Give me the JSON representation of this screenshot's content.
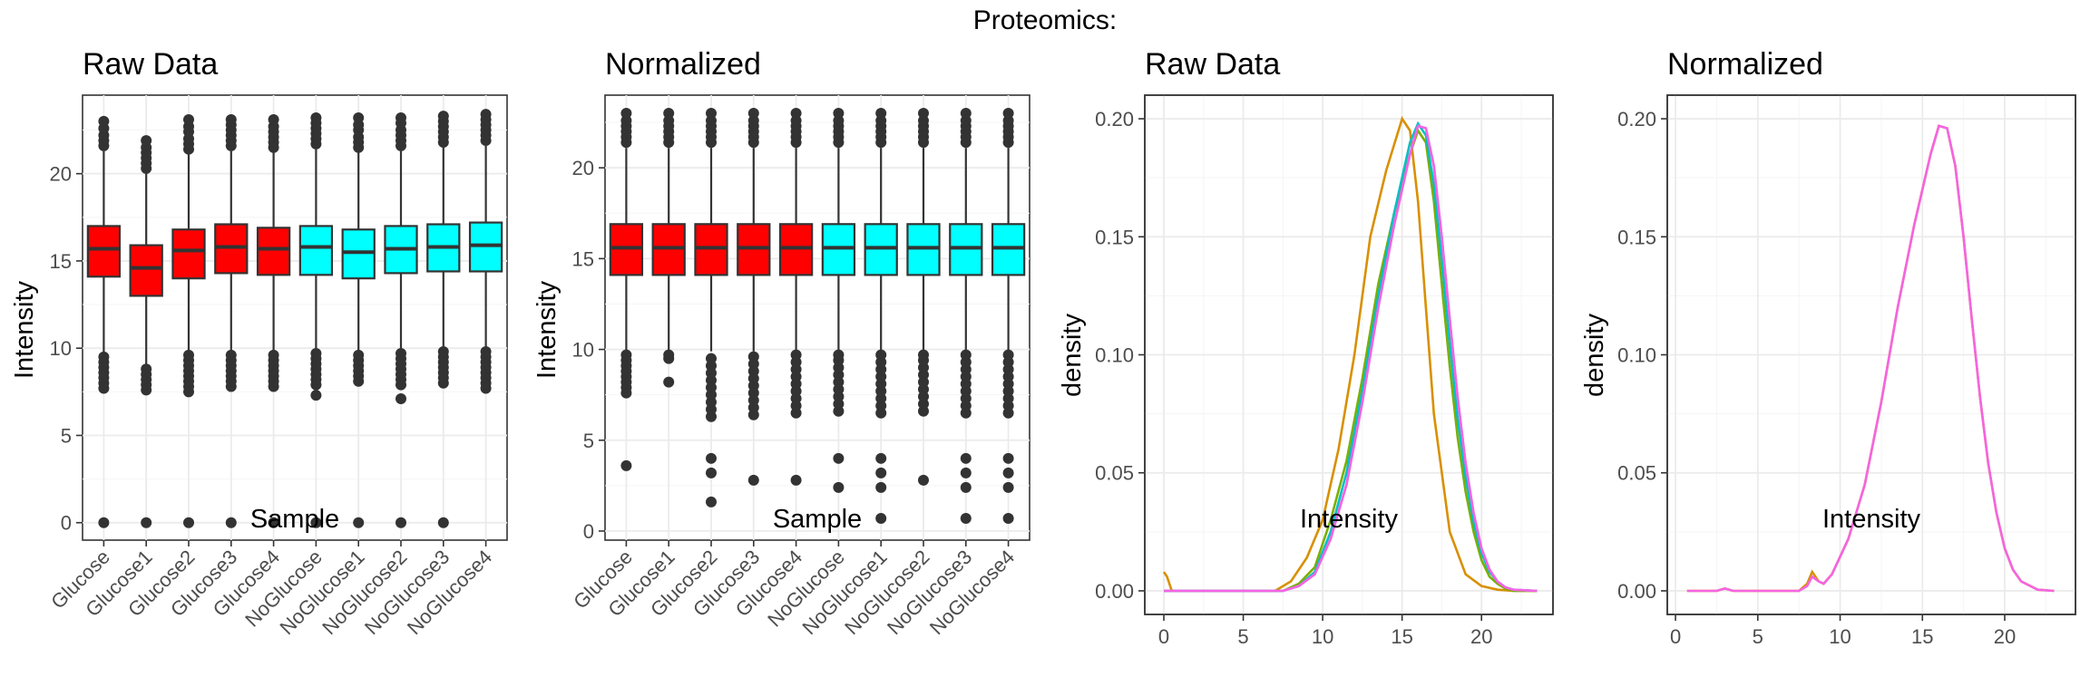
{
  "suptitle": "Proteomics:",
  "colors": {
    "Glucose": "#ff0000",
    "NoGlucose": "#00ffff"
  },
  "chart_data": [
    {
      "type": "box",
      "title": "Raw Data",
      "xlabel": "Sample",
      "ylabel": "Intensity",
      "ylim": [
        -1,
        24.5
      ],
      "yticks": [
        0,
        5,
        10,
        15,
        20
      ],
      "categories": [
        "Glucose",
        "Glucose1",
        "Glucose2",
        "Glucose3",
        "Glucose4",
        "NoGlucose",
        "NoGlucose1",
        "NoGlucose2",
        "NoGlucose3",
        "NoGlucose4"
      ],
      "groups": [
        "Glucose",
        "Glucose",
        "Glucose",
        "Glucose",
        "Glucose",
        "NoGlucose",
        "NoGlucose",
        "NoGlucose",
        "NoGlucose",
        "NoGlucose"
      ],
      "boxes": [
        {
          "q1": 14.1,
          "median": 15.7,
          "q3": 17.0,
          "lower": 9.8,
          "upper": 21.3,
          "outliers": [
            0,
            7.7,
            8.0,
            8.3,
            8.6,
            8.9,
            9.2,
            9.5,
            21.6,
            21.9,
            22.2,
            22.6,
            23.0
          ]
        },
        {
          "q1": 13.0,
          "median": 14.6,
          "q3": 15.9,
          "lower": 8.9,
          "upper": 20.1,
          "outliers": [
            0,
            7.6,
            7.9,
            8.2,
            8.5,
            8.8,
            20.3,
            20.6,
            20.9,
            21.2,
            21.5,
            21.9
          ]
        },
        {
          "q1": 14.0,
          "median": 15.6,
          "q3": 16.8,
          "lower": 9.8,
          "upper": 21.1,
          "outliers": [
            0,
            7.5,
            7.8,
            8.1,
            8.4,
            8.7,
            9.0,
            9.3,
            9.6,
            21.4,
            21.7,
            22.0,
            22.4,
            22.7,
            23.1
          ]
        },
        {
          "q1": 14.3,
          "median": 15.8,
          "q3": 17.1,
          "lower": 9.9,
          "upper": 21.3,
          "outliers": [
            0,
            7.8,
            8.1,
            8.4,
            8.7,
            9.0,
            9.3,
            9.6,
            21.6,
            21.9,
            22.2,
            22.5,
            22.8,
            23.1
          ]
        },
        {
          "q1": 14.2,
          "median": 15.7,
          "q3": 16.9,
          "lower": 9.9,
          "upper": 21.2,
          "outliers": [
            0,
            7.8,
            8.1,
            8.4,
            8.7,
            9.0,
            9.3,
            9.6,
            21.5,
            21.8,
            22.1,
            22.4,
            22.7,
            23.1
          ]
        },
        {
          "q1": 14.2,
          "median": 15.8,
          "q3": 17.0,
          "lower": 9.9,
          "upper": 21.4,
          "outliers": [
            0,
            7.3,
            7.9,
            8.2,
            8.5,
            8.8,
            9.1,
            9.4,
            9.7,
            21.7,
            22.0,
            22.3,
            22.6,
            22.9,
            23.2
          ]
        },
        {
          "q1": 14.0,
          "median": 15.5,
          "q3": 16.8,
          "lower": 9.8,
          "upper": 21.2,
          "outliers": [
            0,
            8.1,
            8.4,
            8.7,
            9.0,
            9.3,
            9.6,
            21.5,
            21.8,
            22.1,
            22.5,
            22.8,
            23.2
          ]
        },
        {
          "q1": 14.3,
          "median": 15.7,
          "q3": 17.0,
          "lower": 9.9,
          "upper": 21.3,
          "outliers": [
            0,
            7.1,
            7.9,
            8.2,
            8.5,
            8.8,
            9.1,
            9.4,
            9.7,
            21.6,
            21.9,
            22.2,
            22.5,
            22.9,
            23.2
          ]
        },
        {
          "q1": 14.4,
          "median": 15.8,
          "q3": 17.1,
          "lower": 10.0,
          "upper": 21.5,
          "outliers": [
            0,
            8.0,
            8.3,
            8.6,
            8.9,
            9.2,
            9.5,
            9.8,
            21.8,
            22.1,
            22.4,
            22.7,
            23.0,
            23.3
          ]
        },
        {
          "q1": 14.4,
          "median": 15.9,
          "q3": 17.2,
          "lower": 10.1,
          "upper": 21.6,
          "outliers": [
            7.7,
            8.0,
            8.3,
            8.6,
            8.9,
            9.2,
            9.5,
            9.8,
            21.9,
            22.2,
            22.5,
            22.8,
            23.1,
            23.4
          ]
        }
      ]
    },
    {
      "type": "box",
      "title": "Normalized",
      "xlabel": "Sample",
      "ylabel": "Intensity",
      "ylim": [
        -0.5,
        24.0
      ],
      "yticks": [
        0,
        5,
        10,
        15,
        20
      ],
      "categories": [
        "Glucose",
        "Glucose1",
        "Glucose2",
        "Glucose3",
        "Glucose4",
        "NoGlucose",
        "NoGlucose1",
        "NoGlucose2",
        "NoGlucose3",
        "NoGlucose4"
      ],
      "groups": [
        "Glucose",
        "Glucose",
        "Glucose",
        "Glucose",
        "Glucose",
        "NoGlucose",
        "NoGlucose",
        "NoGlucose",
        "NoGlucose",
        "NoGlucose"
      ],
      "boxes": [
        {
          "q1": 14.1,
          "median": 15.6,
          "q3": 16.9,
          "lower": 9.9,
          "upper": 21.1,
          "outliers": [
            3.6,
            7.6,
            7.9,
            8.2,
            8.5,
            8.8,
            9.1,
            9.4,
            9.7,
            21.4,
            21.7,
            22.0,
            22.3,
            22.6,
            23.0
          ]
        },
        {
          "q1": 14.1,
          "median": 15.6,
          "q3": 16.9,
          "lower": 9.9,
          "upper": 21.1,
          "outliers": [
            8.2,
            9.5,
            9.7,
            21.4,
            21.7,
            22.0,
            22.3,
            22.6,
            23.0
          ]
        },
        {
          "q1": 14.1,
          "median": 15.6,
          "q3": 16.9,
          "lower": 9.9,
          "upper": 21.1,
          "outliers": [
            1.6,
            3.2,
            4.0,
            6.3,
            6.7,
            7.1,
            7.5,
            7.9,
            8.3,
            8.7,
            9.1,
            9.5,
            21.4,
            21.7,
            22.0,
            22.3,
            22.6,
            23.0
          ]
        },
        {
          "q1": 14.1,
          "median": 15.6,
          "q3": 16.9,
          "lower": 9.9,
          "upper": 21.1,
          "outliers": [
            2.8,
            6.4,
            6.8,
            7.2,
            7.6,
            8.0,
            8.4,
            8.8,
            9.2,
            9.6,
            21.4,
            21.7,
            22.0,
            22.3,
            22.6,
            23.0
          ]
        },
        {
          "q1": 14.1,
          "median": 15.6,
          "q3": 16.9,
          "lower": 9.9,
          "upper": 21.1,
          "outliers": [
            2.8,
            6.5,
            6.9,
            7.3,
            7.7,
            8.1,
            8.5,
            8.9,
            9.3,
            9.7,
            21.4,
            21.7,
            22.0,
            22.3,
            22.6,
            23.0
          ]
        },
        {
          "q1": 14.1,
          "median": 15.6,
          "q3": 16.9,
          "lower": 9.9,
          "upper": 21.1,
          "outliers": [
            2.4,
            4.0,
            6.6,
            7.0,
            7.4,
            7.8,
            8.2,
            8.6,
            9.0,
            9.4,
            9.7,
            21.4,
            21.7,
            22.0,
            22.3,
            22.6,
            23.0
          ]
        },
        {
          "q1": 14.1,
          "median": 15.6,
          "q3": 16.9,
          "lower": 9.9,
          "upper": 21.1,
          "outliers": [
            0.7,
            2.4,
            3.2,
            4.0,
            6.5,
            6.9,
            7.3,
            7.7,
            8.1,
            8.5,
            8.9,
            9.3,
            9.7,
            21.4,
            21.7,
            22.0,
            22.3,
            22.6,
            23.0
          ]
        },
        {
          "q1": 14.1,
          "median": 15.6,
          "q3": 16.9,
          "lower": 9.9,
          "upper": 21.1,
          "outliers": [
            2.8,
            6.6,
            7.0,
            7.4,
            7.8,
            8.2,
            8.6,
            9.0,
            9.4,
            9.7,
            21.4,
            21.7,
            22.0,
            22.3,
            22.6,
            23.0
          ]
        },
        {
          "q1": 14.1,
          "median": 15.6,
          "q3": 16.9,
          "lower": 9.9,
          "upper": 21.1,
          "outliers": [
            0.7,
            2.4,
            3.2,
            4.0,
            6.5,
            6.9,
            7.3,
            7.7,
            8.1,
            8.5,
            8.9,
            9.3,
            9.7,
            21.4,
            21.7,
            22.0,
            22.3,
            22.6,
            23.0
          ]
        },
        {
          "q1": 14.1,
          "median": 15.6,
          "q3": 16.9,
          "lower": 9.9,
          "upper": 21.1,
          "outliers": [
            0.7,
            2.4,
            3.2,
            4.0,
            6.5,
            6.9,
            7.3,
            7.7,
            8.1,
            8.5,
            8.9,
            9.3,
            9.7,
            21.4,
            21.7,
            22.0,
            22.3,
            22.6,
            23.0
          ]
        }
      ]
    },
    {
      "type": "line",
      "title": "Raw Data",
      "xlabel": "Intensity",
      "ylabel": "density",
      "xlim": [
        -1.2,
        24.5
      ],
      "ylim": [
        -0.01,
        0.21
      ],
      "xticks": [
        0,
        5,
        10,
        15,
        20
      ],
      "yticks": [
        0.0,
        0.05,
        0.1,
        0.15,
        0.2
      ],
      "ytick_labels": [
        "0.00",
        "0.05",
        "0.10",
        "0.15",
        "0.20"
      ],
      "series": [
        {
          "color": "#d89000",
          "x": [
            0,
            0.2,
            0.5,
            1.0,
            7.0,
            8.0,
            9.0,
            10.0,
            11.0,
            12.0,
            13.0,
            14.0,
            15.0,
            15.5,
            16.0,
            16.5,
            17.0,
            18.0,
            19.0,
            20.0,
            21.0,
            22.0,
            23.5
          ],
          "y": [
            0.008,
            0.006,
            0.0,
            0.0,
            0.0,
            0.004,
            0.014,
            0.03,
            0.06,
            0.1,
            0.15,
            0.178,
            0.2,
            0.195,
            0.165,
            0.12,
            0.075,
            0.025,
            0.007,
            0.002,
            0.0005,
            0.0,
            0.0
          ]
        },
        {
          "color": "#7cae00",
          "x": [
            0,
            7.5,
            8.5,
            9.5,
            10.5,
            11.5,
            12.5,
            13.5,
            14.5,
            15.5,
            16.0,
            16.5,
            17.0,
            17.5,
            18.0,
            18.5,
            19.0,
            19.5,
            20.0,
            20.5,
            21.0,
            21.5,
            22.0,
            23.5
          ],
          "y": [
            0.0,
            0.0,
            0.003,
            0.01,
            0.03,
            0.055,
            0.09,
            0.13,
            0.16,
            0.185,
            0.195,
            0.19,
            0.165,
            0.13,
            0.095,
            0.065,
            0.042,
            0.025,
            0.013,
            0.006,
            0.003,
            0.001,
            0.0,
            0.0
          ]
        },
        {
          "color": "#00bfc4",
          "x": [
            0,
            7.5,
            8.5,
            9.5,
            10.5,
            11.5,
            12.5,
            13.5,
            14.5,
            15.5,
            16.0,
            16.5,
            17.0,
            17.5,
            18.0,
            18.5,
            19.0,
            19.5,
            20.0,
            20.5,
            21.0,
            21.5,
            22.0,
            23.5
          ],
          "y": [
            0.0,
            0.0,
            0.002,
            0.008,
            0.025,
            0.05,
            0.085,
            0.125,
            0.16,
            0.19,
            0.198,
            0.193,
            0.172,
            0.14,
            0.105,
            0.073,
            0.048,
            0.029,
            0.016,
            0.008,
            0.004,
            0.0015,
            0.0005,
            0.0
          ]
        },
        {
          "color": "#c77cff",
          "x": [
            0,
            7.5,
            8.5,
            9.5,
            10.5,
            11.5,
            12.5,
            13.5,
            14.5,
            15.5,
            16.0,
            16.5,
            17.0,
            17.5,
            18.0,
            18.5,
            19.0,
            19.5,
            20.0,
            20.5,
            21.0,
            21.5,
            22.0,
            23.5
          ],
          "y": [
            0.0,
            0.0,
            0.002,
            0.007,
            0.022,
            0.045,
            0.08,
            0.12,
            0.155,
            0.185,
            0.197,
            0.196,
            0.18,
            0.15,
            0.115,
            0.082,
            0.054,
            0.033,
            0.018,
            0.009,
            0.004,
            0.0015,
            0.0005,
            0.0
          ]
        },
        {
          "color": "#f564e3",
          "x": [
            0,
            7.5,
            8.5,
            9.5,
            10.5,
            11.5,
            12.5,
            13.5,
            14.5,
            15.5,
            16.0,
            16.5,
            17.0,
            17.5,
            18.0,
            18.5,
            19.0,
            19.5,
            20.0,
            20.5,
            21.0,
            21.5,
            22.0,
            23.5
          ],
          "y": [
            0.0,
            0.0,
            0.002,
            0.007,
            0.022,
            0.045,
            0.08,
            0.12,
            0.155,
            0.185,
            0.197,
            0.196,
            0.18,
            0.15,
            0.115,
            0.082,
            0.054,
            0.033,
            0.018,
            0.009,
            0.004,
            0.0015,
            0.0005,
            0.0
          ]
        }
      ]
    },
    {
      "type": "line",
      "title": "Normalized",
      "xlabel": "Intensity",
      "ylabel": "density",
      "xlim": [
        -0.5,
        24.3
      ],
      "ylim": [
        -0.01,
        0.21
      ],
      "xticks": [
        0,
        5,
        10,
        15,
        20
      ],
      "yticks": [
        0.0,
        0.05,
        0.1,
        0.15,
        0.2
      ],
      "ytick_labels": [
        "0.00",
        "0.05",
        "0.10",
        "0.15",
        "0.20"
      ],
      "series": [
        {
          "color": "#d89000",
          "x": [
            0.7,
            2.5,
            3.0,
            3.5,
            4.0,
            7.5,
            8.0,
            8.3,
            8.7,
            9.0,
            9.5,
            10.5,
            11.5,
            12.5,
            13.5,
            14.5,
            15.5,
            16.0,
            16.5,
            17.0,
            17.5,
            18.0,
            18.5,
            19.0,
            19.5,
            20.0,
            20.5,
            21.0,
            22.0,
            23.0
          ],
          "y": [
            0.0,
            0.0,
            0.001,
            0.0,
            0.0,
            0.0,
            0.003,
            0.008,
            0.004,
            0.003,
            0.007,
            0.022,
            0.045,
            0.08,
            0.12,
            0.155,
            0.185,
            0.197,
            0.196,
            0.18,
            0.15,
            0.115,
            0.082,
            0.054,
            0.033,
            0.018,
            0.009,
            0.004,
            0.0005,
            0.0
          ]
        },
        {
          "color": "#f564e3",
          "x": [
            0.7,
            2.5,
            3.0,
            3.5,
            4.0,
            7.5,
            8.0,
            8.3,
            8.7,
            9.0,
            9.5,
            10.5,
            11.5,
            12.5,
            13.5,
            14.5,
            15.5,
            16.0,
            16.5,
            17.0,
            17.5,
            18.0,
            18.5,
            19.0,
            19.5,
            20.0,
            20.5,
            21.0,
            22.0,
            23.0
          ],
          "y": [
            0.0,
            0.0,
            0.001,
            0.0,
            0.0,
            0.0,
            0.002,
            0.006,
            0.004,
            0.003,
            0.007,
            0.022,
            0.045,
            0.08,
            0.12,
            0.155,
            0.185,
            0.197,
            0.196,
            0.18,
            0.15,
            0.115,
            0.082,
            0.054,
            0.033,
            0.018,
            0.009,
            0.004,
            0.0005,
            0.0
          ]
        }
      ]
    }
  ]
}
